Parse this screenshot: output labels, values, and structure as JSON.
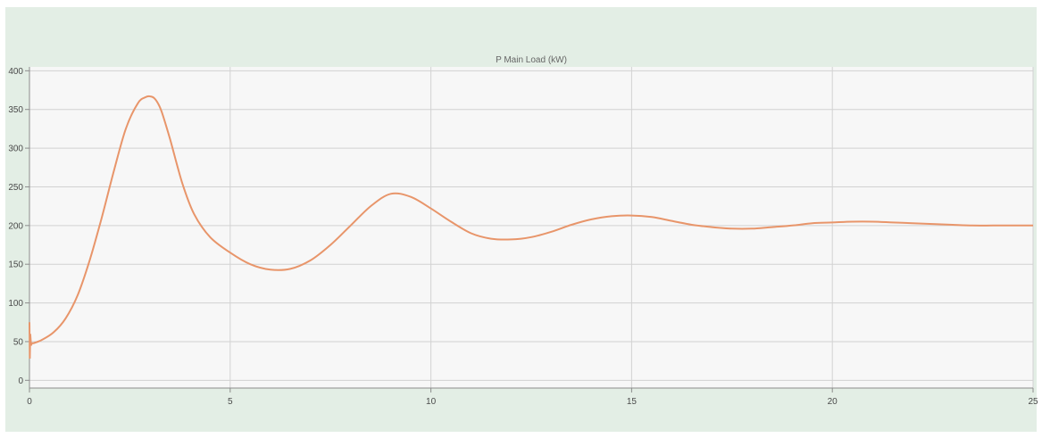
{
  "colors": {
    "window_bg": "#e3eee5",
    "plot_bg": "#f7f7f7",
    "grid": "#d2d2d2",
    "axis": "#8c8c8c",
    "series": "#e8956a"
  },
  "chart_data": {
    "type": "line",
    "title": "P Main Load (kW)",
    "xlabel": "",
    "ylabel": "",
    "xlim": [
      0,
      25
    ],
    "ylim": [
      -10,
      405
    ],
    "xticks": [
      0,
      5,
      10,
      15,
      20,
      25
    ],
    "yticks": [
      0,
      50,
      100,
      150,
      200,
      250,
      300,
      350,
      400
    ],
    "grid": true,
    "legend": "none",
    "series": [
      {
        "x": [
          0,
          0.01,
          0.02,
          0.04,
          0.06,
          0.1,
          0.3,
          0.6,
          0.9,
          1.2,
          1.5,
          1.8,
          2.1,
          2.4,
          2.7,
          2.9,
          3.0,
          3.1,
          3.2,
          3.3,
          3.5,
          3.8,
          4.1,
          4.5,
          5.0,
          5.5,
          6.0,
          6.5,
          7.0,
          7.5,
          8.0,
          8.5,
          9.0,
          9.5,
          10.0,
          10.5,
          11.0,
          11.5,
          12.0,
          12.5,
          13.0,
          13.5,
          14.0,
          14.5,
          15.0,
          15.5,
          16.0,
          16.5,
          17.0,
          17.5,
          18.0,
          18.5,
          19.0,
          19.5,
          20.0,
          20.5,
          21.0,
          21.5,
          22.0,
          22.5,
          23.0,
          23.5,
          24.0,
          24.5,
          25.0
        ],
        "y": [
          75,
          28,
          60,
          45,
          48,
          48,
          52,
          62,
          80,
          110,
          155,
          210,
          270,
          325,
          358,
          366,
          367,
          365,
          358,
          346,
          312,
          256,
          215,
          185,
          165,
          150,
          143,
          144,
          155,
          175,
          200,
          225,
          241,
          237,
          222,
          205,
          190,
          183,
          182,
          185,
          192,
          201,
          208,
          212,
          213,
          211,
          206,
          201,
          198,
          196,
          196,
          198,
          200,
          203,
          204,
          205,
          205,
          204,
          203,
          202,
          201,
          200,
          200,
          200,
          200
        ]
      }
    ]
  }
}
